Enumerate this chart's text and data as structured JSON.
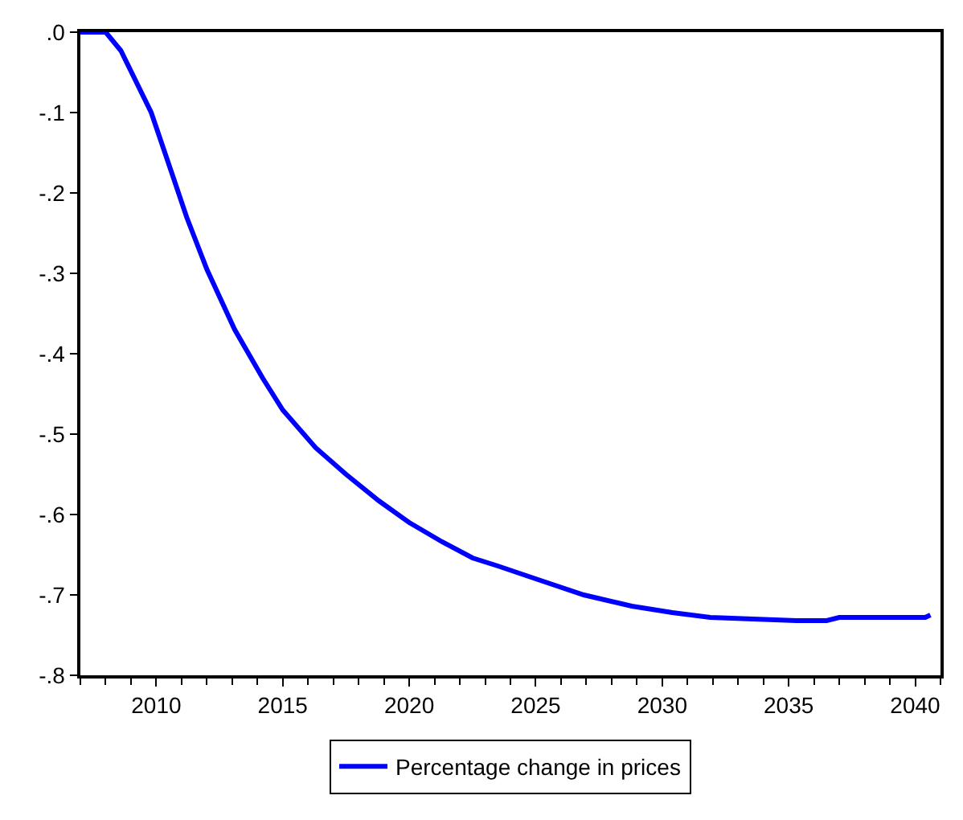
{
  "chart_data": {
    "type": "line",
    "x": [
      2007.0,
      2008.0,
      2008.6,
      2009.8,
      2010.6,
      2011.2,
      2012.0,
      2013.1,
      2014.2,
      2015.0,
      2016.3,
      2017.5,
      2018.8,
      2020.0,
      2021.3,
      2022.5,
      2023.5,
      2025.0,
      2026.9,
      2028.8,
      2030.4,
      2031.9,
      2035.3,
      2036.5,
      2037.0,
      2040.4,
      2040.6
    ],
    "series": [
      {
        "name": "Percentage change in prices",
        "color": "#0000ff",
        "values": [
          0.0,
          0.0,
          -0.023,
          -0.1,
          -0.174,
          -0.23,
          -0.295,
          -0.37,
          -0.43,
          -0.47,
          -0.517,
          -0.55,
          -0.583,
          -0.61,
          -0.634,
          -0.654,
          -0.664,
          -0.68,
          -0.7,
          -0.714,
          -0.722,
          -0.728,
          -0.732,
          -0.732,
          -0.728,
          -0.728,
          -0.725
        ]
      }
    ],
    "xlim": [
      2007,
      2041
    ],
    "xticks": [
      2010,
      2015,
      2020,
      2025,
      2030,
      2035,
      2040
    ],
    "ylim": [
      -0.8,
      0.0
    ],
    "yticks": [
      {
        "value": 0.0,
        "label": ".0"
      },
      {
        "value": -0.1,
        "label": "-.1"
      },
      {
        "value": -0.2,
        "label": "-.2"
      },
      {
        "value": -0.3,
        "label": "-.3"
      },
      {
        "value": -0.4,
        "label": "-.4"
      },
      {
        "value": -0.5,
        "label": "-.5"
      },
      {
        "value": -0.6,
        "label": "-.6"
      },
      {
        "value": -0.7,
        "label": "-.7"
      },
      {
        "value": -0.8,
        "label": "-.8"
      }
    ],
    "legend": "bottom",
    "marker": "none",
    "line_style": "solid"
  }
}
